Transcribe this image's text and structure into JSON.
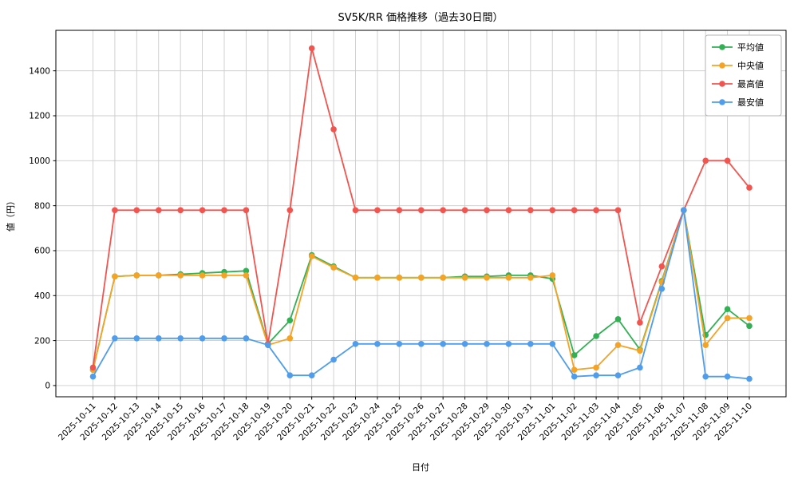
{
  "chart_data": {
    "type": "line",
    "title": "SV5K/RR 価格推移（過去30日間）",
    "xlabel": "日付",
    "ylabel": "値（円）",
    "grid": true,
    "legend_position": "upper right",
    "y_ticks": [
      0,
      200,
      400,
      600,
      800,
      1000,
      1200,
      1400
    ],
    "ylim": [
      -50,
      1580
    ],
    "x": [
      "2025-10-11",
      "2025-10-12",
      "2025-10-13",
      "2025-10-14",
      "2025-10-15",
      "2025-10-16",
      "2025-10-17",
      "2025-10-18",
      "2025-10-19",
      "2025-10-20",
      "2025-10-21",
      "2025-10-22",
      "2025-10-23",
      "2025-10-24",
      "2025-10-25",
      "2025-10-26",
      "2025-10-27",
      "2025-10-28",
      "2025-10-29",
      "2025-10-30",
      "2025-10-31",
      "2025-11-01",
      "2025-11-02",
      "2025-11-03",
      "2025-11-04",
      "2025-11-05",
      "2025-11-06",
      "2025-11-07",
      "2025-11-08",
      "2025-11-09",
      "2025-11-10"
    ],
    "series": [
      {
        "key": "avg",
        "name": "平均値",
        "color": "#33b054",
        "values": [
          70,
          485,
          490,
          490,
          495,
          500,
          505,
          510,
          185,
          290,
          580,
          530,
          480,
          480,
          480,
          480,
          480,
          485,
          485,
          490,
          490,
          475,
          135,
          220,
          295,
          160,
          465,
          780,
          225,
          340,
          265
        ]
      },
      {
        "key": "median",
        "name": "中央値",
        "color": "#f5a325",
        "values": [
          70,
          485,
          490,
          490,
          490,
          490,
          490,
          490,
          180,
          210,
          575,
          525,
          480,
          480,
          480,
          480,
          480,
          480,
          480,
          480,
          480,
          490,
          70,
          80,
          180,
          155,
          460,
          780,
          180,
          300,
          300
        ]
      },
      {
        "key": "max",
        "name": "最高値",
        "color": "#f05550",
        "values": [
          80,
          780,
          780,
          780,
          780,
          780,
          780,
          780,
          185,
          780,
          1500,
          1140,
          780,
          780,
          780,
          780,
          780,
          780,
          780,
          780,
          780,
          780,
          780,
          780,
          780,
          280,
          530,
          780,
          1000,
          1000,
          880
        ]
      },
      {
        "key": "min",
        "name": "最安値",
        "color": "#4f9deb",
        "values": [
          40,
          210,
          210,
          210,
          210,
          210,
          210,
          210,
          180,
          45,
          45,
          115,
          185,
          185,
          185,
          185,
          185,
          185,
          185,
          185,
          185,
          185,
          40,
          45,
          45,
          80,
          430,
          780,
          40,
          40,
          30
        ]
      }
    ]
  }
}
